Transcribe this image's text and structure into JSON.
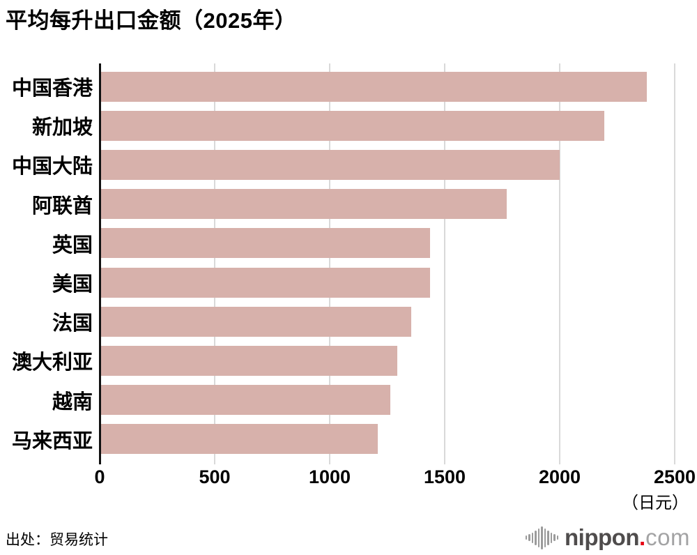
{
  "title": "平均每升出口金额（2025年）",
  "source": "出处：贸易统计",
  "logo": {
    "icon": "soundwave-bars-icon",
    "name": "nippon",
    "dot": ".",
    "tld": "com",
    "name_color": "#4f4c4c",
    "dot_color": "#e60012",
    "tld_color": "#a3a3a4"
  },
  "chart_data": {
    "type": "bar",
    "orientation": "horizontal",
    "title": "平均每升出口金额（2025年）",
    "unit_label": "（日元）",
    "categories": [
      "中国香港",
      "新加坡",
      "中国大陆",
      "阿联酋",
      "英国",
      "美国",
      "法国",
      "澳大利亚",
      "越南",
      "马来西亚"
    ],
    "values": [
      2380,
      2195,
      2000,
      1770,
      1435,
      1435,
      1355,
      1295,
      1265,
      1210
    ],
    "xlabel": "",
    "ylabel": "",
    "xlim": [
      0,
      2500
    ],
    "xticks": [
      0,
      500,
      1000,
      1500,
      2000,
      2500
    ],
    "grid": true,
    "legend": false,
    "bar_color": "#d7b1ab",
    "gridline_color": "#d9d9d9",
    "axis_color": "#111111",
    "text_color": "#000000"
  }
}
